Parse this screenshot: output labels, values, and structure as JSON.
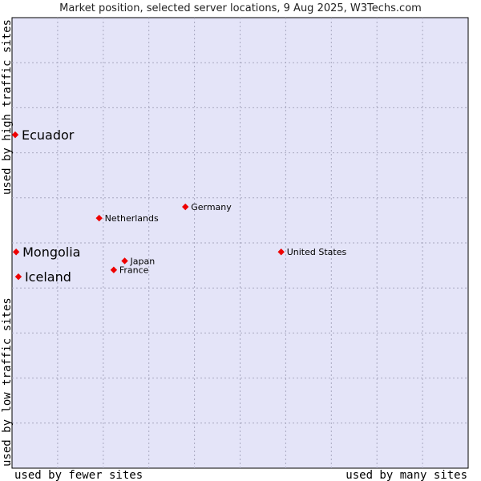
{
  "chart_data": {
    "type": "scatter",
    "title": "Market position, selected server locations, 9 Aug 2025, W3Techs.com",
    "xlabel_left": "used by fewer sites",
    "xlabel_right": "used by many sites",
    "ylabel_bottom": "used by low traffic sites",
    "ylabel_top": "used by high traffic sites",
    "grid": true,
    "xlim": [
      0,
      10
    ],
    "ylim": [
      0,
      10
    ],
    "colors": {
      "plot_bg": "#e4e4f8",
      "grid": "#a8a8c0",
      "marker": "#ee0000"
    },
    "points": [
      {
        "label": "Ecuador",
        "x": 0.07,
        "y": 7.4,
        "emphasis": true
      },
      {
        "label": "Mongolia",
        "x": 0.09,
        "y": 4.8,
        "emphasis": true
      },
      {
        "label": "Iceland",
        "x": 0.14,
        "y": 4.25,
        "emphasis": true
      },
      {
        "label": "Germany",
        "x": 3.8,
        "y": 5.8,
        "emphasis": false
      },
      {
        "label": "Netherlands",
        "x": 1.91,
        "y": 5.55,
        "emphasis": false
      },
      {
        "label": "United States",
        "x": 5.9,
        "y": 4.8,
        "emphasis": false
      },
      {
        "label": "Japan",
        "x": 2.47,
        "y": 4.6,
        "emphasis": false
      },
      {
        "label": "France",
        "x": 2.23,
        "y": 4.4,
        "emphasis": false
      }
    ]
  }
}
